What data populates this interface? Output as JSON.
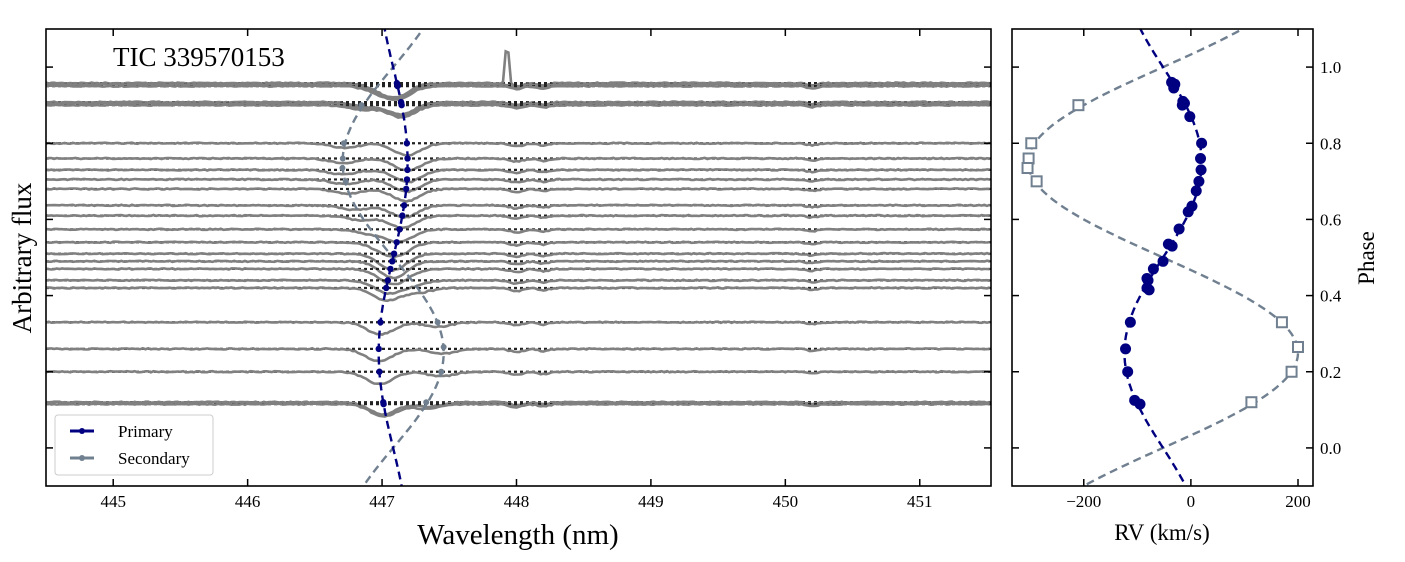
{
  "colors": {
    "primary": "#000080",
    "secondary": "#708090",
    "spectrum": "#808080"
  },
  "chart_data": [
    {
      "type": "line",
      "title": "TIC 339570153",
      "xlabel": "Wavelength (nm)",
      "ylabel": "Arbitrary flux",
      "xlim": [
        444.5,
        451.53
      ],
      "ylim": [
        -0.1,
        1.1
      ],
      "xticks": [
        "445",
        "446",
        "447",
        "448",
        "449",
        "450",
        "451"
      ],
      "yticks": [
        0.0,
        0.2,
        0.4,
        0.6,
        0.8,
        1.0
      ],
      "rest_wavelength_nm": 447.16,
      "spectra_phases": [
        0.958,
        0.955,
        0.95,
        0.908,
        0.905,
        0.9,
        0.8,
        0.76,
        0.73,
        0.705,
        0.68,
        0.637,
        0.61,
        0.574,
        0.54,
        0.51,
        0.49,
        0.47,
        0.44,
        0.42,
        0.33,
        0.26,
        0.2,
        0.12,
        0.115
      ],
      "legend": {
        "placement": "lower-left",
        "entries": [
          "Primary",
          "Secondary"
        ]
      }
    },
    {
      "type": "scatter",
      "xlabel": "RV (km/s)",
      "ylabel": "Phase",
      "xlim": [
        -334,
        228
      ],
      "ylim": [
        -0.1,
        1.1
      ],
      "xticks": [
        "−200",
        "0",
        "200"
      ],
      "xtick_values": [
        -200,
        0,
        200
      ],
      "yticks": [
        "0.0",
        "0.2",
        "0.4",
        "0.6",
        "0.8",
        "1.0"
      ],
      "ytick_values": [
        0.0,
        0.2,
        0.4,
        0.6,
        0.8,
        1.0
      ],
      "model": {
        "gamma": -52,
        "K_primary": 72,
        "K_secondary": 252
      },
      "primary": [
        [
          0.96,
          -36
        ],
        [
          0.955,
          -30
        ],
        [
          0.945,
          -32
        ],
        [
          0.91,
          -15
        ],
        [
          0.905,
          -12
        ],
        [
          0.9,
          -16
        ],
        [
          0.87,
          -2
        ],
        [
          0.8,
          20
        ],
        [
          0.76,
          18
        ],
        [
          0.73,
          19
        ],
        [
          0.7,
          15
        ],
        [
          0.675,
          10
        ],
        [
          0.635,
          2
        ],
        [
          0.62,
          -5
        ],
        [
          0.575,
          -22
        ],
        [
          0.535,
          -42
        ],
        [
          0.53,
          -35
        ],
        [
          0.49,
          -52
        ],
        [
          0.47,
          -70
        ],
        [
          0.445,
          -82
        ],
        [
          0.44,
          -80
        ],
        [
          0.42,
          -82
        ],
        [
          0.415,
          -78
        ],
        [
          0.33,
          -113
        ],
        [
          0.26,
          -122
        ],
        [
          0.2,
          -118
        ],
        [
          0.125,
          -105
        ],
        [
          0.115,
          -95
        ]
      ],
      "secondary": [
        [
          0.9,
          -210
        ],
        [
          0.8,
          -298
        ],
        [
          0.76,
          -303
        ],
        [
          0.735,
          -305
        ],
        [
          0.7,
          -288
        ],
        [
          0.33,
          170
        ],
        [
          0.265,
          200
        ],
        [
          0.2,
          188
        ],
        [
          0.12,
          113
        ]
      ]
    }
  ]
}
